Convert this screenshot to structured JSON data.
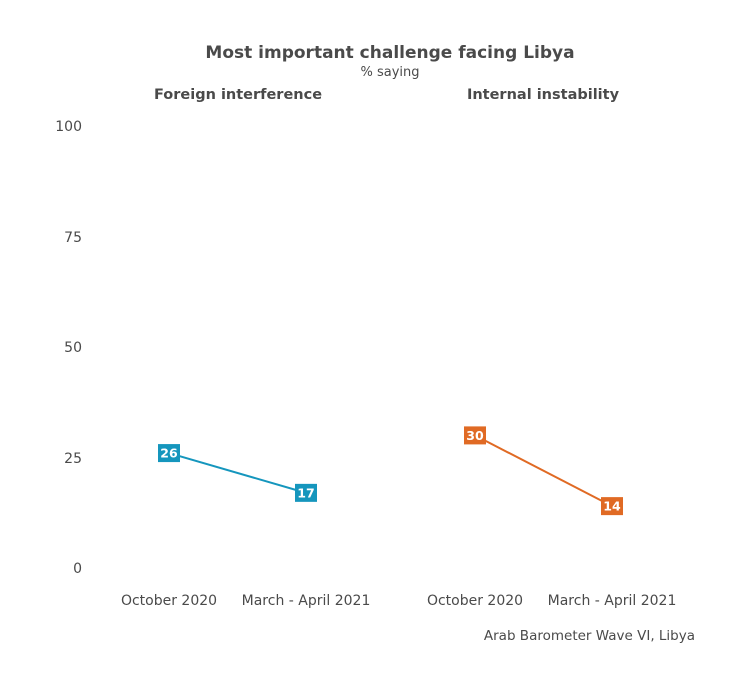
{
  "chart_data": {
    "type": "line",
    "title": "Most important challenge facing Libya",
    "subtitle": "% saying",
    "source": "Arab Barometer Wave VI, Libya",
    "ylim": [
      0,
      100
    ],
    "yticks": [
      "100",
      "75",
      "50",
      "25",
      "0"
    ],
    "categories": [
      "October 2020",
      "March - April 2021"
    ],
    "grid": false,
    "panels": [
      {
        "title": "Foreign interference",
        "color": "#1596bd",
        "values": [
          26,
          17
        ]
      },
      {
        "title": "Internal instability",
        "color": "#e06a24",
        "values": [
          30,
          14
        ]
      }
    ]
  }
}
